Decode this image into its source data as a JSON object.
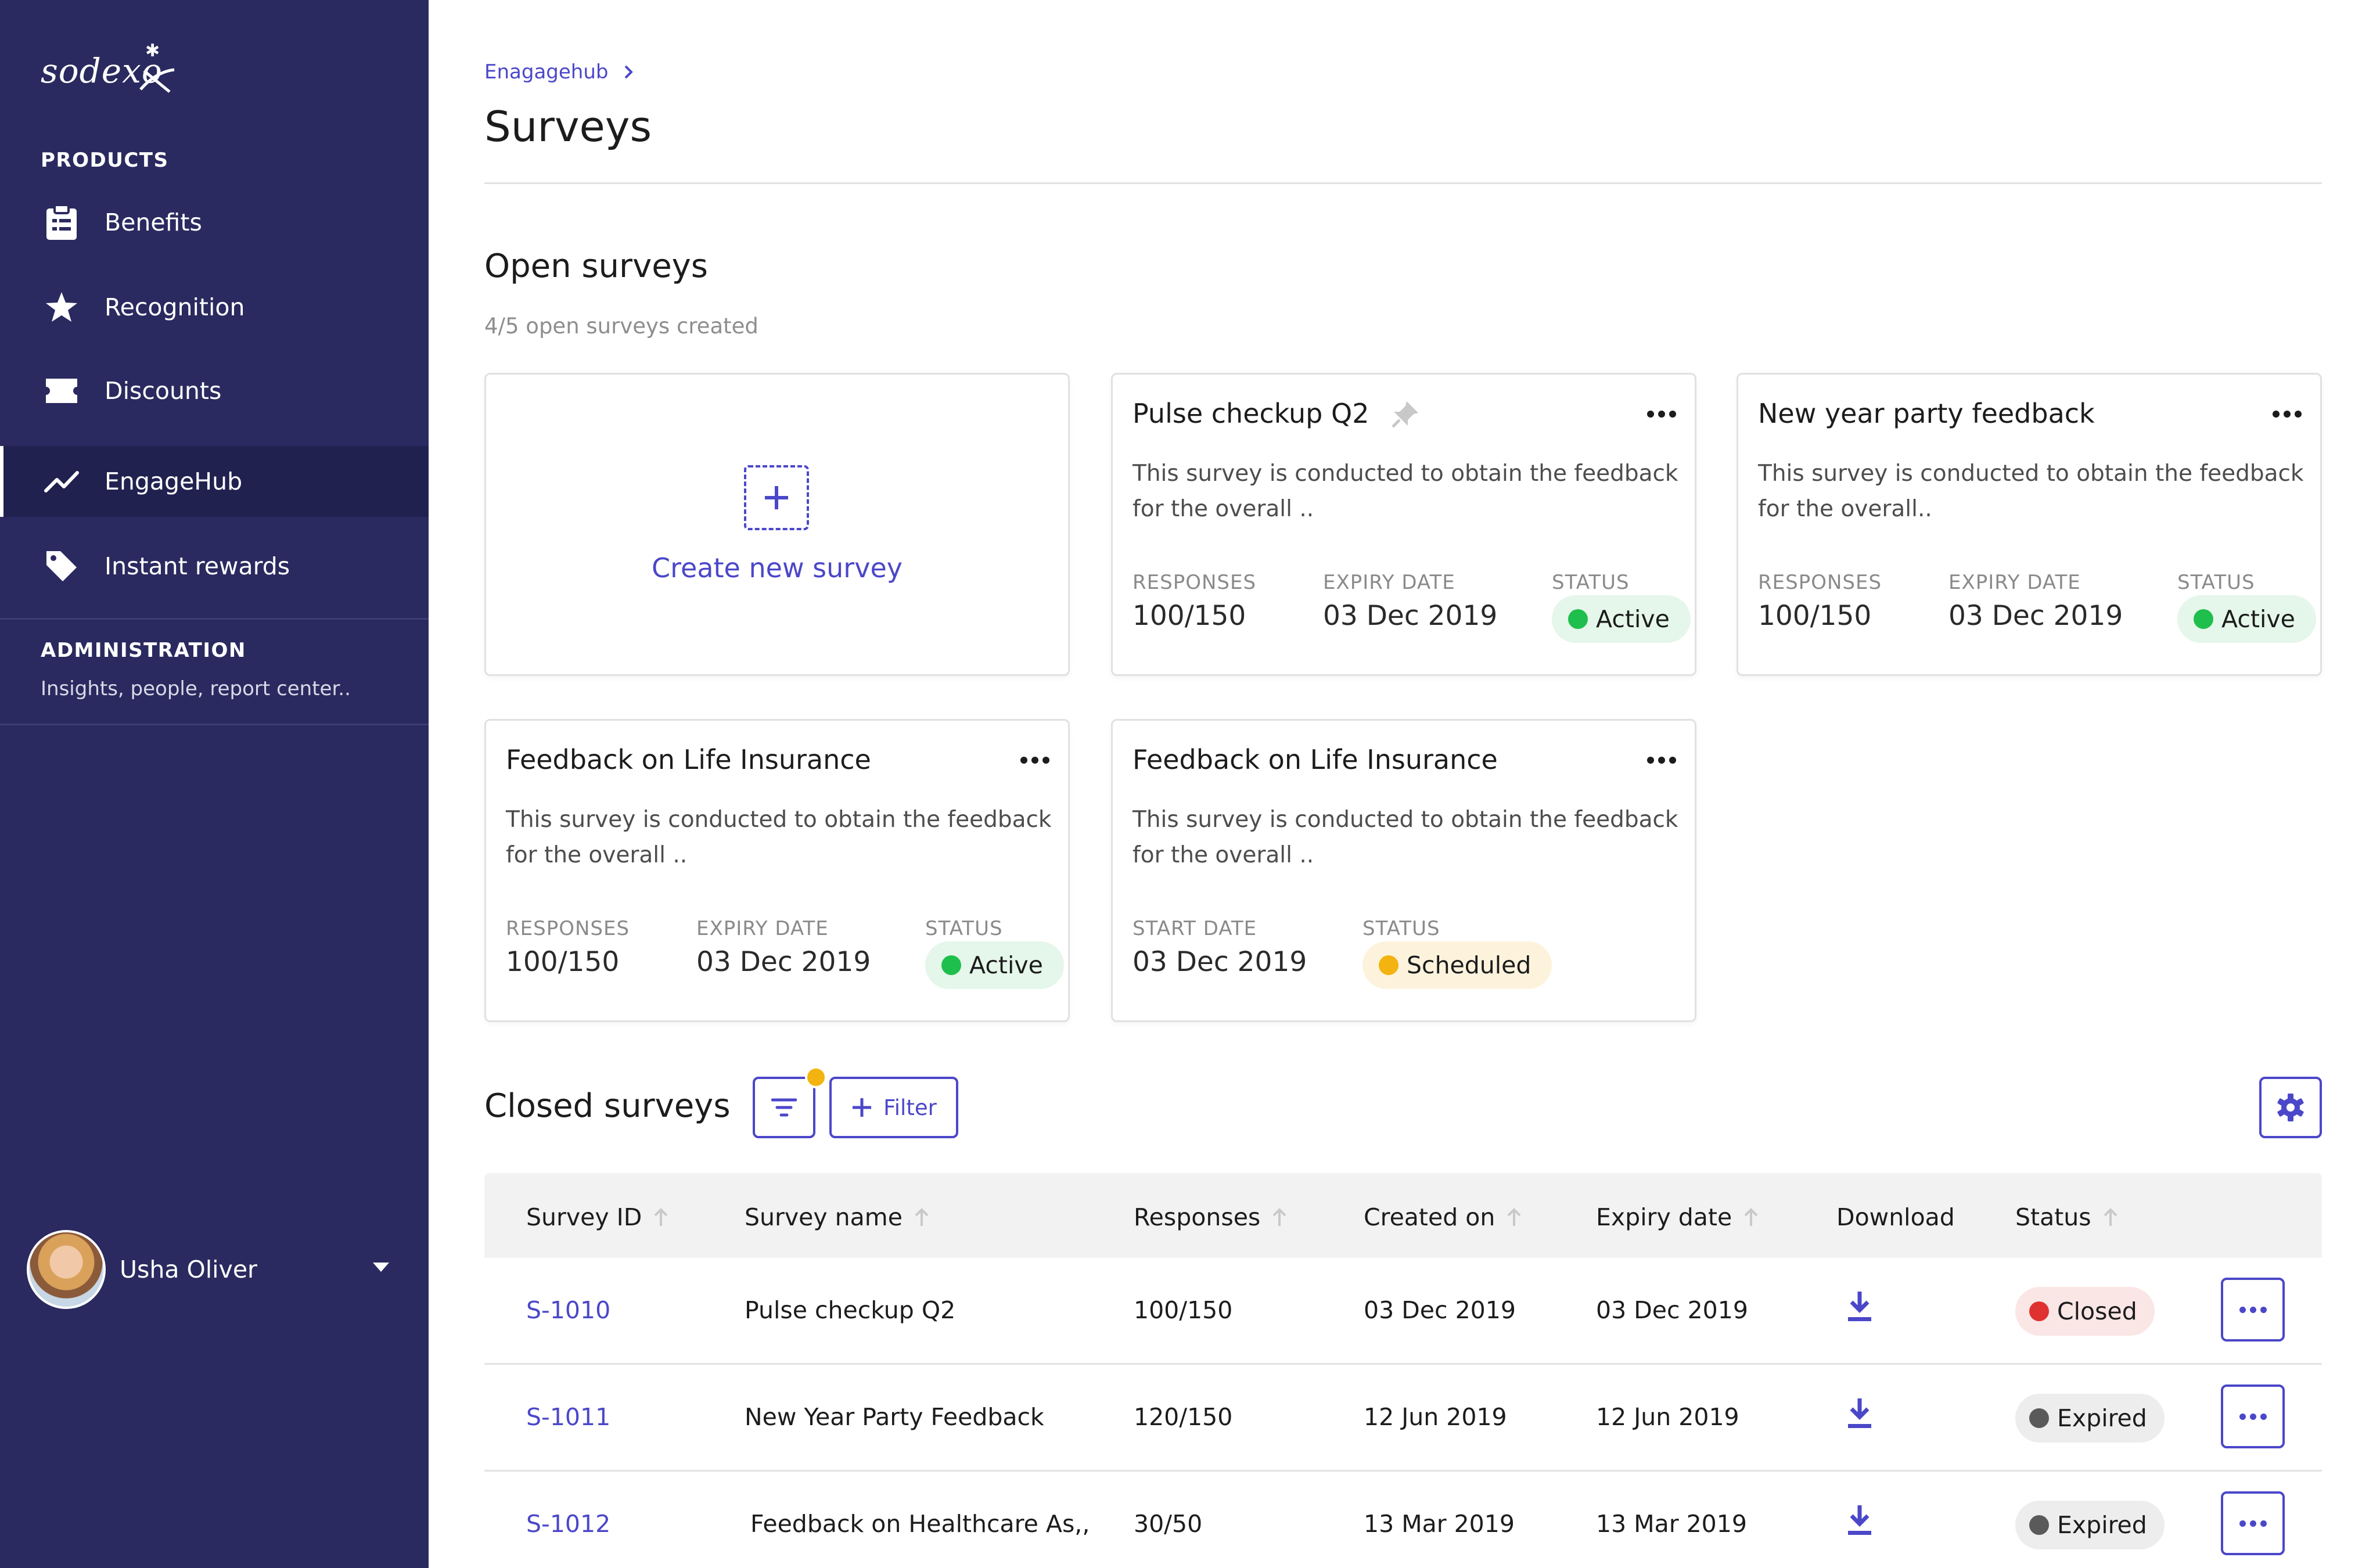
{
  "sidebar": {
    "brand": "sodexo",
    "products_title": "PRODUCTS",
    "items": [
      {
        "label": "Benefits",
        "icon": "clipboard-icon"
      },
      {
        "label": "Recognition",
        "icon": "star-icon"
      },
      {
        "label": "Discounts",
        "icon": "ticket-icon"
      },
      {
        "label": "EngageHub",
        "icon": "trend-icon",
        "active": true
      },
      {
        "label": "Instant rewards",
        "icon": "tag-icon"
      }
    ],
    "admin_title": "ADMINISTRATION",
    "admin_subtitle": "Insights, people, report center..",
    "user": {
      "name": "Usha Oliver"
    }
  },
  "breadcrumb": {
    "link": "Enagagehub"
  },
  "page_title": "Surveys",
  "open_surveys": {
    "title": "Open surveys",
    "subtitle": "4/5 open surveys created",
    "create_label": "Create new survey",
    "cards": [
      {
        "title": "Pulse checkup Q2",
        "pinned": true,
        "desc_line1": "This survey is conducted to obtain the feedback",
        "desc_line2": "for the overall ..",
        "stat1_label": "RESPONSES",
        "stat1_value": "100/150",
        "stat2_label": "EXPIRY DATE",
        "stat2_value": "03 Dec 2019",
        "status_label": "STATUS",
        "status": "Active"
      },
      {
        "title": "New year party feedback",
        "desc_line1": "This survey is conducted to obtain the feedback",
        "desc_line2": "for the overall..",
        "stat1_label": "RESPONSES",
        "stat1_value": "100/150",
        "stat2_label": "EXPIRY DATE",
        "stat2_value": "03 Dec 2019",
        "status_label": "STATUS",
        "status": "Active"
      },
      {
        "title": "Feedback on Life Insurance",
        "desc_line1": "This survey is conducted to obtain the feedback",
        "desc_line2": "for the overall ..",
        "stat1_label": "RESPONSES",
        "stat1_value": "100/150",
        "stat2_label": "EXPIRY DATE",
        "stat2_value": "03 Dec 2019",
        "status_label": "STATUS",
        "status": "Active"
      },
      {
        "title": "Feedback on Life Insurance",
        "desc_line1": "This survey is conducted to obtain the feedback",
        "desc_line2": "for the overall ..",
        "stat1_label": "START DATE",
        "stat1_value": "03 Dec 2019",
        "status_label": "STATUS",
        "status": "Scheduled"
      }
    ]
  },
  "closed_surveys": {
    "title": "Closed surveys",
    "filter_label": "Filter",
    "columns": [
      "Survey ID",
      "Survey name",
      "Responses",
      "Created on",
      "Expiry date",
      "Download",
      "Status"
    ],
    "rows": [
      {
        "id": "S-1010",
        "name": "Pulse checkup Q2",
        "responses": "100/150",
        "created": "03 Dec 2019",
        "expiry": "03 Dec 2019",
        "status": "Closed"
      },
      {
        "id": "S-1011",
        "name": "New Year Party Feedback",
        "responses": "120/150",
        "created": "12 Jun 2019",
        "expiry": "12 Jun 2019",
        "status": "Expired"
      },
      {
        "id": "S-1012",
        "name": "Feedback on Healthcare As,,",
        "responses": "30/50",
        "created": "13 Mar 2019",
        "expiry": "13 Mar 2019",
        "status": "Expired"
      }
    ]
  },
  "colors": {
    "sidebar_bg": "#2a2a60",
    "accent": "#4b47c9",
    "active": "#1fbf4d",
    "scheduled": "#f3b310",
    "closed": "#e03131"
  }
}
